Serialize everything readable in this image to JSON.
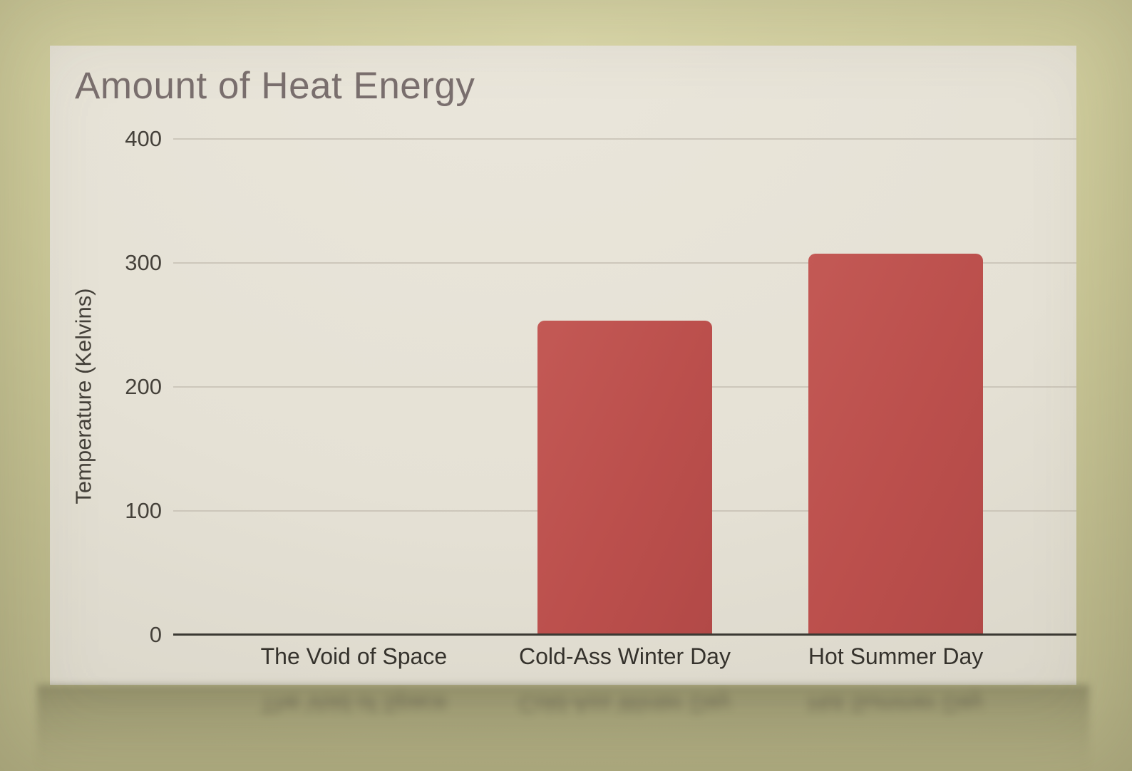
{
  "colors": {
    "background_light": "#dbd8aa",
    "background_mid": "#cbc898",
    "background_dark": "#b5b286",
    "slide_background": "#e5e1d5",
    "title_color": "#7a6f6e",
    "tick_label_color": "#45413a",
    "category_label_color": "#35322c",
    "gridline_color": "#c4beb2",
    "axis_line_color": "#3b3933",
    "bar_color": "#bb4f4c"
  },
  "chart_data": {
    "type": "bar",
    "title": "Amount of Heat Energy",
    "ylabel": "Temperature (Kelvins)",
    "xlabel": "",
    "categories": [
      "The Void of Space",
      "Cold-Ass Winter Day",
      "Hot Summer Day"
    ],
    "values": [
      0,
      253,
      307
    ],
    "ylim": [
      0,
      400
    ],
    "yticks": [
      400,
      300,
      200,
      100,
      0
    ],
    "grid": "horizontal gridlines on",
    "legend": "none"
  }
}
